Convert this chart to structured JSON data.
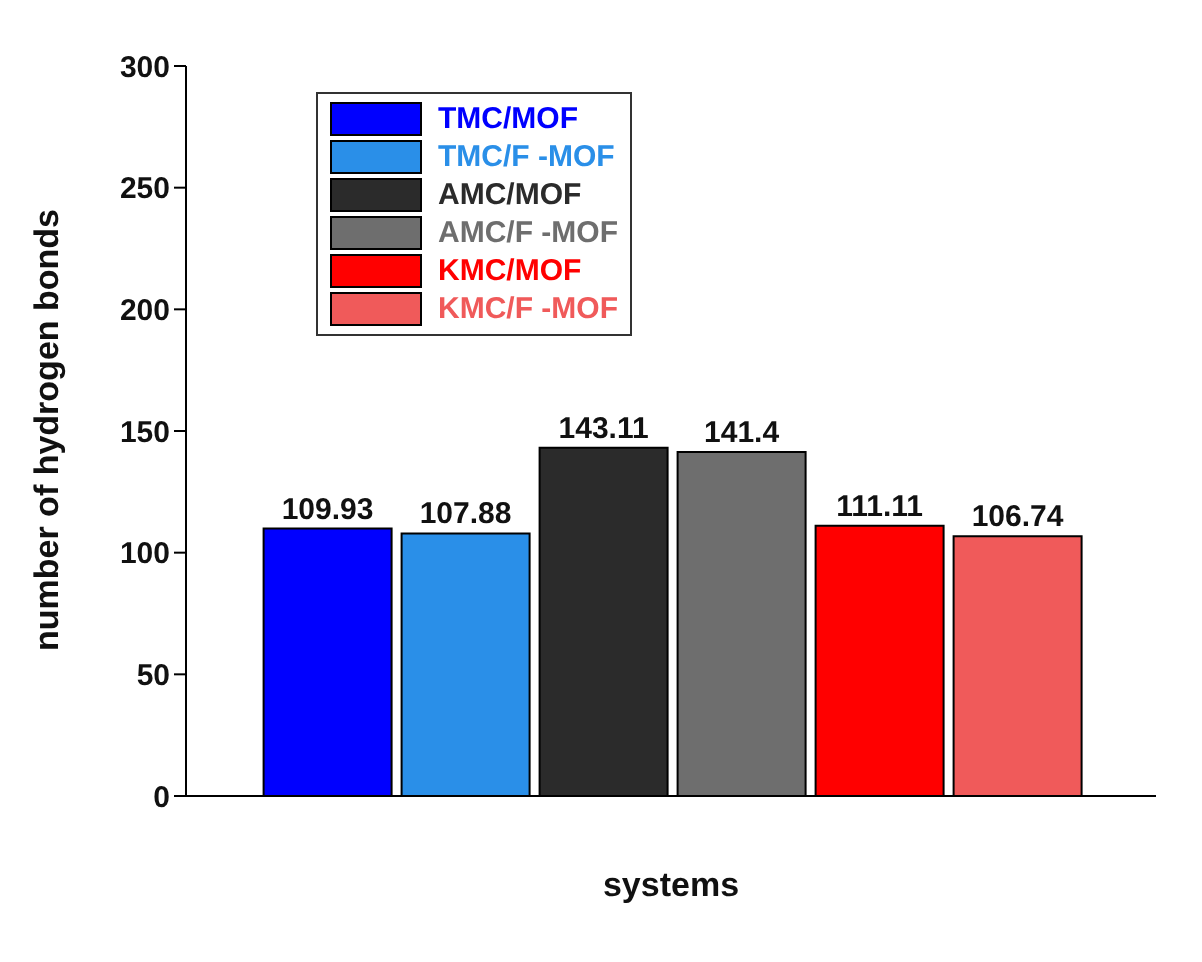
{
  "chart_data": {
    "type": "bar",
    "xlabel": "systems",
    "ylabel": "number of hydrogen bonds",
    "categories": [
      null
    ],
    "series": [
      {
        "name": "TMC/MOF",
        "color": "#0000ff",
        "values": [
          109.93
        ]
      },
      {
        "name": "TMC/F -MOF",
        "color": "#2a8fe8",
        "values": [
          107.88
        ]
      },
      {
        "name": "AMC/MOF",
        "color": "#2b2b2b",
        "values": [
          143.11
        ]
      },
      {
        "name": "AMC/F -MOF",
        "color": "#6e6e6e",
        "values": [
          141.4
        ]
      },
      {
        "name": "KMC/MOF",
        "color": "#ff0000",
        "values": [
          111.11
        ]
      },
      {
        "name": "KMC/F -MOF",
        "color": "#f05a5a",
        "values": [
          106.74
        ]
      }
    ],
    "ylim": [
      0,
      300
    ],
    "yticks": [
      0,
      50,
      100,
      150,
      200,
      250,
      300
    ],
    "data_labels": true,
    "legend": "top left",
    "grid": false
  }
}
